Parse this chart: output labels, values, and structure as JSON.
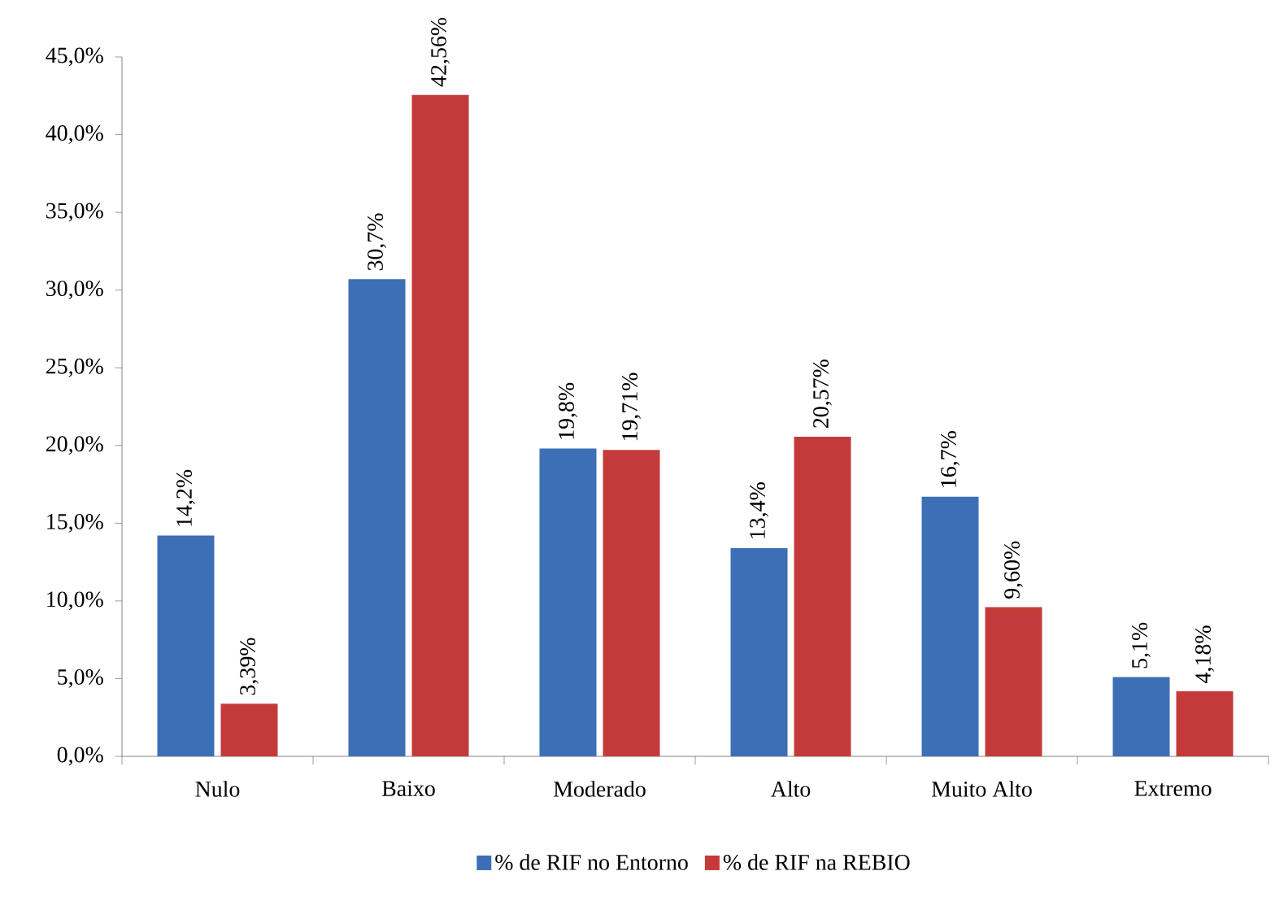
{
  "chart_data": {
    "type": "bar",
    "categories": [
      "Nulo",
      "Baixo",
      "Moderado",
      "Alto",
      "Muito Alto",
      "Extremo"
    ],
    "series": [
      {
        "name": "% de RIF no Entorno",
        "color": "#3c6fb6",
        "values": [
          14.2,
          30.7,
          19.8,
          13.4,
          16.7,
          5.1
        ],
        "value_labels": [
          "14,2%",
          "30,7%",
          "19,8%",
          "13,4%",
          "16,7%",
          "5,1%"
        ]
      },
      {
        "name": "% de RIF na REBIO",
        "color": "#c43a3a",
        "values": [
          3.39,
          42.56,
          19.71,
          20.57,
          9.6,
          4.18
        ],
        "value_labels": [
          "3,39%",
          "42,56%",
          "19,71%",
          "20,57%",
          "9,60%",
          "4,18%"
        ]
      }
    ],
    "ylim": [
      0,
      45
    ],
    "yticks": [
      {
        "value": 0,
        "label": "0,0%"
      },
      {
        "value": 5,
        "label": "5,0%"
      },
      {
        "value": 10,
        "label": "10,0%"
      },
      {
        "value": 15,
        "label": "15,0%"
      },
      {
        "value": 20,
        "label": "20,0%"
      },
      {
        "value": 25,
        "label": "25,0%"
      },
      {
        "value": 30,
        "label": "30,0%"
      },
      {
        "value": 35,
        "label": "35,0%"
      },
      {
        "value": 40,
        "label": "40,0%"
      },
      {
        "value": 45,
        "label": "45,0%"
      }
    ],
    "legend": "bottom",
    "grid": false
  }
}
